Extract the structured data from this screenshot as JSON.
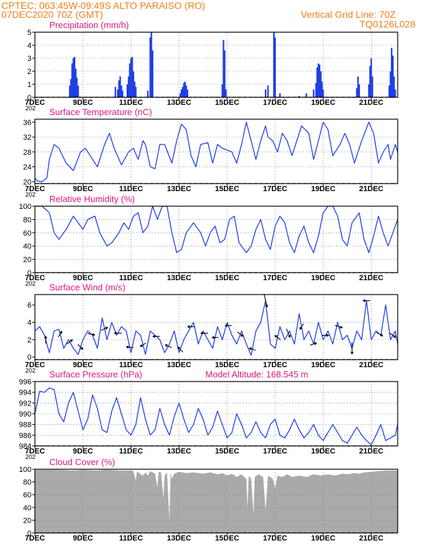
{
  "header": {
    "line1": "CPTEC:   063:45W-09:49S   ALTO PARAISO (RO)",
    "line2": "07DEC2020 70Z (GMT)",
    "grid_note": "Vertical Grid Line: 70Z",
    "code": "TQ0126L028",
    "model_altitude": "Model Altitude: 168.545  m"
  },
  "colors": {
    "header": "#ef7f1a",
    "title": "#e0197c",
    "series": "#1f3fe6",
    "cloud": "#aaaaaa",
    "frame": "#000000",
    "grid": "#7a7a7a"
  },
  "x_axis": {
    "ticks": [
      "7DEC",
      "9DEC",
      "11DEC",
      "13DEC",
      "15DEC",
      "17DEC",
      "19DEC",
      "21DEC"
    ],
    "tick_days": [
      7,
      9,
      11,
      13,
      15,
      17,
      19,
      21
    ],
    "range_days": [
      7,
      22.1
    ],
    "year_fragment": "202"
  },
  "chart_data": [
    {
      "id": "precip",
      "type": "bar",
      "title": "Precipitation  (mm/h)",
      "ylim": [
        0,
        5
      ],
      "yticks": [
        0,
        1,
        2,
        3,
        4,
        5
      ],
      "points": [
        [
          8.45,
          0.9
        ],
        [
          8.5,
          1.4
        ],
        [
          8.55,
          2.6
        ],
        [
          8.6,
          3.0
        ],
        [
          8.65,
          3.1
        ],
        [
          8.7,
          2.2
        ],
        [
          8.75,
          1.5
        ],
        [
          8.8,
          0.9
        ],
        [
          10.35,
          0.8
        ],
        [
          10.45,
          0.6
        ],
        [
          10.5,
          1.3
        ],
        [
          10.55,
          1.6
        ],
        [
          10.6,
          0.9
        ],
        [
          10.65,
          0.5
        ],
        [
          10.85,
          1.0
        ],
        [
          10.9,
          1.6
        ],
        [
          10.95,
          2.6
        ],
        [
          11.0,
          3.0
        ],
        [
          11.05,
          3.1
        ],
        [
          11.1,
          2.0
        ],
        [
          11.15,
          1.2
        ],
        [
          11.2,
          0.8
        ],
        [
          11.7,
          0.5
        ],
        [
          11.8,
          4.6
        ],
        [
          11.85,
          5.0
        ],
        [
          11.9,
          3.6
        ],
        [
          13.05,
          0.3
        ],
        [
          13.1,
          0.6
        ],
        [
          13.15,
          0.8
        ],
        [
          13.2,
          1.1
        ],
        [
          13.25,
          1.2
        ],
        [
          13.3,
          0.9
        ],
        [
          13.35,
          0.6
        ],
        [
          14.8,
          1.0
        ],
        [
          14.85,
          4.4
        ],
        [
          14.9,
          3.6
        ],
        [
          14.95,
          0.6
        ],
        [
          16.6,
          0.6
        ],
        [
          16.7,
          0.9
        ],
        [
          16.95,
          5.0
        ],
        [
          17.0,
          4.6
        ],
        [
          17.2,
          0.3
        ],
        [
          18.0,
          0.1
        ],
        [
          18.3,
          0.3
        ],
        [
          18.6,
          0.6
        ],
        [
          18.7,
          1.1
        ],
        [
          18.75,
          2.3
        ],
        [
          18.8,
          2.6
        ],
        [
          18.85,
          2.5
        ],
        [
          18.9,
          2.0
        ],
        [
          18.95,
          1.2
        ],
        [
          19.0,
          0.6
        ],
        [
          20.4,
          0.7
        ],
        [
          20.45,
          1.6
        ],
        [
          20.5,
          1.0
        ],
        [
          20.9,
          1.0
        ],
        [
          20.95,
          2.4
        ],
        [
          21.0,
          3.0
        ],
        [
          21.05,
          1.6
        ],
        [
          21.75,
          0.9
        ],
        [
          21.8,
          2.0
        ],
        [
          21.85,
          3.8
        ],
        [
          21.9,
          3.2
        ],
        [
          21.95,
          1.6
        ],
        [
          22.0,
          0.6
        ]
      ]
    },
    {
      "id": "temp",
      "type": "line",
      "title": "Surface Temperature (nC)",
      "ylim": [
        19.5,
        36.8
      ],
      "yticks": [
        20,
        24,
        28,
        32,
        36
      ],
      "x": [
        7.0,
        7.1,
        7.3,
        7.5,
        7.6,
        7.8,
        8.0,
        8.3,
        8.6,
        8.9,
        9.1,
        9.3,
        9.6,
        9.9,
        10.1,
        10.3,
        10.6,
        10.9,
        11.1,
        11.3,
        11.5,
        11.6,
        11.8,
        12.0,
        12.2,
        12.4,
        12.7,
        12.9,
        13.1,
        13.3,
        13.5,
        13.7,
        13.9,
        14.2,
        14.4,
        14.6,
        14.8,
        15.0,
        15.2,
        15.4,
        15.6,
        15.8,
        16.0,
        16.2,
        16.4,
        16.6,
        16.7,
        16.9,
        17.1,
        17.3,
        17.5,
        17.7,
        17.9,
        18.1,
        18.4,
        18.6,
        18.8,
        19.0,
        19.2,
        19.4,
        19.7,
        19.9,
        20.1,
        20.3,
        20.6,
        20.9,
        21.1,
        21.3,
        21.5,
        21.7,
        21.8,
        22.0,
        22.1
      ],
      "y": [
        21,
        20.2,
        20,
        21,
        26,
        30,
        29,
        25,
        23,
        28,
        29,
        27,
        24,
        30,
        33,
        29,
        24.5,
        28,
        29,
        26,
        31,
        30,
        24,
        23.5,
        30,
        30,
        25,
        31,
        35.5,
        34,
        27,
        24,
        30,
        30.5,
        25,
        30,
        29,
        28.5,
        28,
        25,
        30,
        36,
        31,
        26,
        31,
        35,
        32,
        31,
        28,
        33,
        31,
        27,
        31,
        35,
        33,
        26,
        31,
        36,
        34,
        27,
        30,
        33,
        30,
        25,
        31,
        36,
        33,
        25,
        28,
        30,
        26,
        30,
        28
      ]
    },
    {
      "id": "rh",
      "type": "line",
      "title": "Relative Humidity (%)",
      "ylim": [
        0,
        100
      ],
      "yticks": [
        0,
        20,
        40,
        60,
        80,
        100
      ],
      "x": [
        7.0,
        7.3,
        7.6,
        7.8,
        8.0,
        8.3,
        8.6,
        8.8,
        9.0,
        9.2,
        9.5,
        9.7,
        10.0,
        10.2,
        10.5,
        10.7,
        10.9,
        11.1,
        11.3,
        11.5,
        11.7,
        11.9,
        12.1,
        12.3,
        12.5,
        12.7,
        12.9,
        13.1,
        13.3,
        13.6,
        13.9,
        14.1,
        14.3,
        14.5,
        14.7,
        14.9,
        15.1,
        15.3,
        15.5,
        15.8,
        16.0,
        16.2,
        16.4,
        16.6,
        16.8,
        17.0,
        17.2,
        17.4,
        17.6,
        17.8,
        18.0,
        18.2,
        18.4,
        18.6,
        18.8,
        19.0,
        19.2,
        19.4,
        19.6,
        19.8,
        20.0,
        20.2,
        20.5,
        20.7,
        20.9,
        21.1,
        21.3,
        21.5,
        21.7,
        21.9,
        22.1
      ],
      "y": [
        100,
        100,
        90,
        60,
        50,
        65,
        85,
        75,
        65,
        80,
        85,
        60,
        40,
        45,
        60,
        75,
        65,
        85,
        90,
        60,
        70,
        100,
        80,
        100,
        100,
        60,
        30,
        35,
        60,
        75,
        60,
        40,
        60,
        70,
        45,
        50,
        80,
        85,
        45,
        30,
        40,
        65,
        80,
        50,
        35,
        70,
        85,
        75,
        45,
        30,
        55,
        70,
        45,
        30,
        55,
        90,
        100,
        100,
        85,
        50,
        40,
        75,
        90,
        50,
        30,
        55,
        85,
        60,
        40,
        60,
        80
      ]
    },
    {
      "id": "wind",
      "type": "line",
      "title": "Surface Wind (m/s)",
      "ylim": [
        -0.3,
        7.2
      ],
      "yticks": [
        0,
        2,
        4,
        6
      ],
      "x": [
        7.0,
        7.2,
        7.4,
        7.6,
        7.8,
        8.0,
        8.2,
        8.4,
        8.6,
        8.8,
        9.0,
        9.2,
        9.4,
        9.6,
        9.8,
        10.0,
        10.2,
        10.4,
        10.6,
        10.8,
        11.0,
        11.2,
        11.4,
        11.6,
        11.8,
        12.0,
        12.2,
        12.4,
        12.6,
        12.8,
        13.0,
        13.2,
        13.4,
        13.6,
        13.8,
        14.0,
        14.2,
        14.4,
        14.6,
        14.8,
        15.0,
        15.2,
        15.4,
        15.6,
        15.8,
        16.0,
        16.2,
        16.4,
        16.6,
        16.8,
        17.0,
        17.2,
        17.4,
        17.6,
        17.8,
        18.0,
        18.2,
        18.4,
        18.6,
        18.8,
        19.0,
        19.2,
        19.4,
        19.6,
        19.8,
        20.0,
        20.2,
        20.4,
        20.6,
        20.8,
        21.0,
        21.2,
        21.4,
        21.6,
        21.8,
        22.0,
        22.1
      ],
      "y": [
        3,
        3.5,
        2.5,
        0.5,
        3,
        3.2,
        1,
        2,
        1,
        0.3,
        2,
        3,
        2.5,
        1,
        4.5,
        2,
        4,
        2.5,
        3.5,
        3,
        0.5,
        3,
        2.5,
        0.3,
        3,
        2.5,
        2,
        0.5,
        1.5,
        3,
        0.5,
        2,
        3,
        4,
        1.5,
        3,
        2,
        1,
        3.5,
        2,
        4,
        2.5,
        1.5,
        3,
        1.5,
        0.2,
        3,
        4,
        6.5,
        1.5,
        1,
        3.5,
        2,
        3,
        1.5,
        5,
        2,
        3,
        1.5,
        4,
        2,
        3,
        1.5,
        4,
        2,
        2.5,
        1,
        3,
        2,
        6.5,
        2,
        3,
        2.5,
        6,
        2,
        3,
        1.5
      ],
      "arrows": [
        {
          "x": 7.45,
          "dx": 0,
          "dy": 1
        },
        {
          "x": 8.05,
          "dx": 0.5,
          "dy": 0.8
        },
        {
          "x": 8.45,
          "dx": 0.8,
          "dy": 0.6
        },
        {
          "x": 8.9,
          "dx": 0.7,
          "dy": -0.7
        },
        {
          "x": 9.35,
          "dx": 1,
          "dy": -0.2
        },
        {
          "x": 9.9,
          "dx": 0.9,
          "dy": 0.4
        },
        {
          "x": 10.45,
          "dx": -1,
          "dy": 0
        },
        {
          "x": 10.95,
          "dx": -1,
          "dy": 0.1
        },
        {
          "x": 11.5,
          "dx": -0.8,
          "dy": -0.5
        },
        {
          "x": 12.05,
          "dx": -1,
          "dy": 0
        },
        {
          "x": 12.55,
          "dx": -0.9,
          "dy": 0.4
        },
        {
          "x": 13.05,
          "dx": -0.7,
          "dy": 0.7
        },
        {
          "x": 13.5,
          "dx": -1,
          "dy": 0
        },
        {
          "x": 14.05,
          "dx": -1,
          "dy": 0
        },
        {
          "x": 14.5,
          "dx": -0.9,
          "dy": 0
        },
        {
          "x": 15.05,
          "dx": -0.9,
          "dy": 0
        },
        {
          "x": 15.55,
          "dx": 0.8,
          "dy": -0.6
        },
        {
          "x": 16.05,
          "dx": -0.9,
          "dy": 0.3
        },
        {
          "x": 16.6,
          "dx": 0.4,
          "dy": -1.8
        },
        {
          "x": 17.1,
          "dx": -0.8,
          "dy": 0.6
        },
        {
          "x": 17.55,
          "dx": 0.5,
          "dy": -1.2
        },
        {
          "x": 18.1,
          "dx": -0.5,
          "dy": -0.8
        },
        {
          "x": 18.6,
          "dx": 0.9,
          "dy": 0.3
        },
        {
          "x": 19.1,
          "dx": 0.9,
          "dy": 0
        },
        {
          "x": 19.65,
          "dx": 1,
          "dy": -0.3
        },
        {
          "x": 20.2,
          "dx": 0,
          "dy": -1.6
        },
        {
          "x": 20.8,
          "dx": -1,
          "dy": 0
        },
        {
          "x": 21.35,
          "dx": 0.9,
          "dy": -0.5
        },
        {
          "x": 21.9,
          "dx": 0.8,
          "dy": -0.6
        }
      ]
    },
    {
      "id": "pres",
      "type": "line",
      "title": "Surface Pressure (hPa)",
      "ylim": [
        984,
        996
      ],
      "yticks": [
        984,
        986,
        988,
        990,
        992,
        994,
        996
      ],
      "x": [
        7.0,
        7.2,
        7.4,
        7.6,
        7.8,
        8.0,
        8.2,
        8.4,
        8.6,
        8.8,
        9.0,
        9.2,
        9.4,
        9.6,
        9.8,
        10.0,
        10.2,
        10.4,
        10.6,
        10.8,
        11.0,
        11.2,
        11.4,
        11.6,
        11.8,
        12.0,
        12.2,
        12.4,
        12.6,
        12.8,
        13.0,
        13.2,
        13.4,
        13.6,
        13.8,
        14.0,
        14.2,
        14.4,
        14.6,
        14.8,
        15.0,
        15.2,
        15.4,
        15.6,
        15.8,
        16.0,
        16.2,
        16.4,
        16.6,
        16.8,
        17.0,
        17.2,
        17.4,
        17.6,
        17.8,
        18.0,
        18.2,
        18.4,
        18.6,
        18.8,
        19.0,
        19.2,
        19.4,
        19.6,
        19.8,
        20.0,
        20.2,
        20.4,
        20.6,
        20.8,
        21.0,
        21.2,
        21.4,
        21.6,
        21.8,
        22.0,
        22.1
      ],
      "y": [
        990,
        994.2,
        994,
        994.8,
        994.5,
        990,
        988.5,
        992,
        994,
        990.5,
        987,
        989,
        993.5,
        991,
        987,
        986.5,
        990.5,
        993,
        990,
        987,
        986,
        988,
        993,
        989,
        986,
        987,
        991,
        988,
        986,
        989.5,
        992,
        989,
        986.5,
        988,
        991,
        989,
        986,
        987.5,
        990.5,
        988,
        985.5,
        986.5,
        990,
        988,
        985.5,
        986.5,
        988.5,
        986.5,
        985.5,
        988,
        989,
        986,
        985.5,
        987,
        989,
        987,
        985.5,
        986.5,
        988,
        986,
        985,
        986.5,
        988,
        986.5,
        985,
        984.5,
        986,
        987.5,
        986,
        985,
        984.2,
        986,
        988,
        985,
        985.5,
        986,
        988
      ]
    },
    {
      "id": "cloud",
      "type": "area",
      "title": "Cloud Cover (%)",
      "ylim": [
        0,
        100
      ],
      "yticks": [
        0,
        20,
        40,
        60,
        80,
        100
      ],
      "points": [
        [
          7.0,
          99
        ],
        [
          7.5,
          99
        ],
        [
          8.0,
          99
        ],
        [
          8.5,
          98
        ],
        [
          9.0,
          99
        ],
        [
          9.5,
          98
        ],
        [
          10.0,
          99
        ],
        [
          10.5,
          98
        ],
        [
          11.0,
          98
        ],
        [
          11.1,
          97
        ],
        [
          11.2,
          82
        ],
        [
          11.25,
          97
        ],
        [
          11.4,
          92
        ],
        [
          11.5,
          90
        ],
        [
          11.6,
          95
        ],
        [
          11.7,
          90
        ],
        [
          11.8,
          97
        ],
        [
          12.0,
          93
        ],
        [
          12.1,
          72
        ],
        [
          12.15,
          96
        ],
        [
          12.25,
          95
        ],
        [
          12.35,
          55
        ],
        [
          12.4,
          90
        ],
        [
          12.5,
          95
        ],
        [
          12.6,
          20
        ],
        [
          12.65,
          95
        ],
        [
          12.7,
          85
        ],
        [
          12.8,
          93
        ],
        [
          13.0,
          96
        ],
        [
          13.3,
          94
        ],
        [
          13.6,
          95
        ],
        [
          14.0,
          93
        ],
        [
          14.3,
          95
        ],
        [
          14.6,
          92
        ],
        [
          14.8,
          94
        ],
        [
          15.0,
          90
        ],
        [
          15.2,
          93
        ],
        [
          15.4,
          88
        ],
        [
          15.6,
          92
        ],
        [
          15.8,
          85
        ],
        [
          15.85,
          40
        ],
        [
          15.9,
          90
        ],
        [
          16.0,
          85
        ],
        [
          16.1,
          30
        ],
        [
          16.15,
          88
        ],
        [
          16.3,
          92
        ],
        [
          16.5,
          88
        ],
        [
          16.6,
          35
        ],
        [
          16.7,
          90
        ],
        [
          16.9,
          85
        ],
        [
          17.0,
          70
        ],
        [
          17.1,
          90
        ],
        [
          17.3,
          88
        ],
        [
          17.5,
          92
        ],
        [
          17.7,
          88
        ],
        [
          18.0,
          90
        ],
        [
          18.3,
          88
        ],
        [
          18.6,
          92
        ],
        [
          18.9,
          90
        ],
        [
          19.2,
          92
        ],
        [
          19.5,
          90
        ],
        [
          19.8,
          93
        ],
        [
          20.0,
          92
        ],
        [
          20.3,
          94
        ],
        [
          20.5,
          93
        ],
        [
          20.7,
          95
        ],
        [
          21.0,
          96
        ],
        [
          21.3,
          97
        ],
        [
          21.6,
          98
        ],
        [
          22.0,
          98
        ],
        [
          22.1,
          98
        ]
      ]
    }
  ]
}
